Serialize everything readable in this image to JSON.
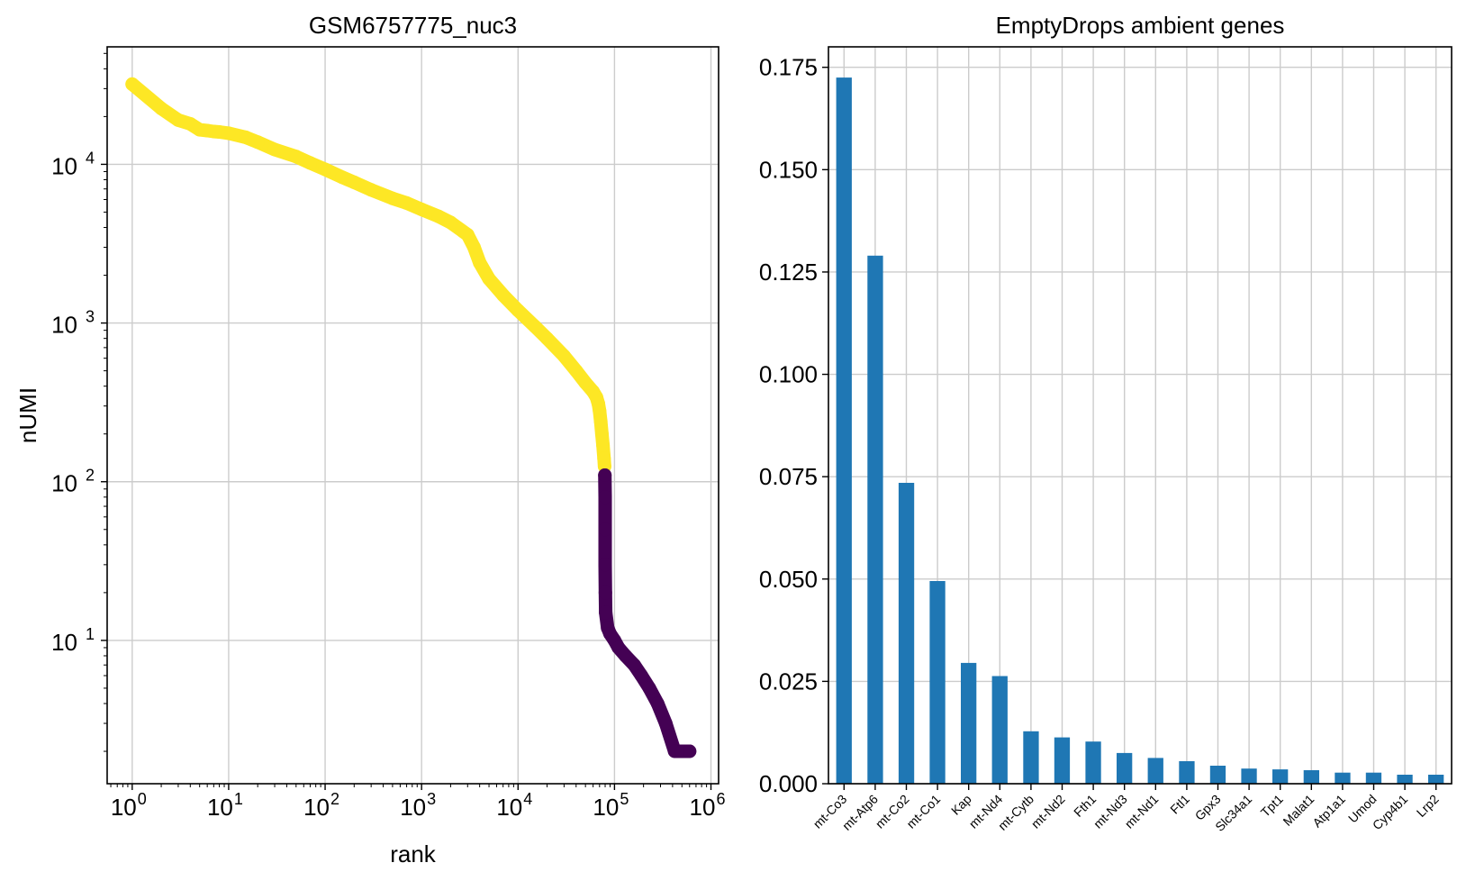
{
  "chart_data": [
    {
      "type": "scatter",
      "title": "GSM6757775_nuc3",
      "xlabel": "rank",
      "ylabel": "nUMI",
      "xscale": "log",
      "yscale": "log",
      "xlim": [
        0.55,
        1200000
      ],
      "ylim": [
        1.25,
        55000
      ],
      "x_ticks": [
        "10^0",
        "10^1",
        "10^2",
        "10^3",
        "10^4",
        "10^5",
        "10^6"
      ],
      "y_ticks": [
        "10^1",
        "10^2",
        "10^3",
        "10^4"
      ],
      "grid": true,
      "colors": {
        "cell": "#fde725",
        "empty": "#440154"
      },
      "series": [
        {
          "color": "#fde725",
          "points": [
            [
              1,
              32000
            ],
            [
              2,
              22500
            ],
            [
              3,
              19000
            ],
            [
              4,
              18000
            ],
            [
              5,
              16500
            ],
            [
              6,
              16300
            ],
            [
              7,
              16100
            ],
            [
              8,
              16000
            ],
            [
              10,
              15700
            ],
            [
              15,
              14800
            ],
            [
              20,
              13800
            ],
            [
              30,
              12400
            ],
            [
              50,
              11200
            ],
            [
              70,
              10200
            ],
            [
              100,
              9300
            ],
            [
              150,
              8300
            ],
            [
              200,
              7700
            ],
            [
              300,
              6900
            ],
            [
              500,
              6100
            ],
            [
              700,
              5700
            ],
            [
              1000,
              5200
            ],
            [
              1500,
              4700
            ],
            [
              2000,
              4300
            ],
            [
              3000,
              3600
            ],
            [
              3500,
              3000
            ],
            [
              4000,
              2400
            ],
            [
              5000,
              1900
            ],
            [
              7000,
              1500
            ],
            [
              10000,
              1200
            ],
            [
              15000,
              950
            ],
            [
              20000,
              800
            ],
            [
              30000,
              620
            ],
            [
              40000,
              500
            ],
            [
              50000,
              420
            ],
            [
              60000,
              370
            ],
            [
              65000,
              340
            ],
            [
              68000,
              310
            ],
            [
              70000,
              280
            ],
            [
              72000,
              240
            ],
            [
              74000,
              200
            ],
            [
              76000,
              170
            ],
            [
              78000,
              140
            ],
            [
              79000,
              125
            ]
          ]
        },
        {
          "color": "#440154",
          "points": [
            [
              79500,
              110
            ],
            [
              80000,
              80
            ],
            [
              80000,
              50
            ],
            [
              80000,
              30
            ],
            [
              80500,
              20
            ],
            [
              81000,
              15
            ],
            [
              85000,
              12
            ],
            [
              90000,
              11
            ],
            [
              100000,
              10
            ],
            [
              110000,
              9
            ],
            [
              130000,
              8
            ],
            [
              160000,
              7
            ],
            [
              190000,
              6
            ],
            [
              230000,
              5
            ],
            [
              280000,
              4
            ],
            [
              340000,
              3
            ],
            [
              420000,
              2
            ],
            [
              500000,
              2
            ],
            [
              600000,
              2
            ]
          ]
        }
      ]
    },
    {
      "type": "bar",
      "title": "EmptyDrops ambient genes",
      "xlabel": "",
      "ylabel": "",
      "ylim": [
        0,
        0.18
      ],
      "y_ticks": [
        "0.000",
        "0.025",
        "0.050",
        "0.075",
        "0.100",
        "0.125",
        "0.150",
        "0.175"
      ],
      "grid": true,
      "color": "#1f77b4",
      "categories": [
        "mt-Co3",
        "mt-Atp6",
        "mt-Co2",
        "mt-Co1",
        "Kap",
        "mt-Nd4",
        "mt-Cytb",
        "mt-Nd2",
        "Fth1",
        "mt-Nd3",
        "mt-Nd1",
        "Ftl1",
        "Gpx3",
        "Slc34a1",
        "Tpt1",
        "Malat1",
        "Atp1a1",
        "Umod",
        "Cyp4b1",
        "Lrp2"
      ],
      "values": [
        0.1725,
        0.129,
        0.0735,
        0.0495,
        0.0295,
        0.0263,
        0.0128,
        0.0113,
        0.0103,
        0.0075,
        0.0063,
        0.0055,
        0.0044,
        0.0037,
        0.0035,
        0.0033,
        0.0027,
        0.0027,
        0.0022,
        0.0022
      ]
    }
  ]
}
